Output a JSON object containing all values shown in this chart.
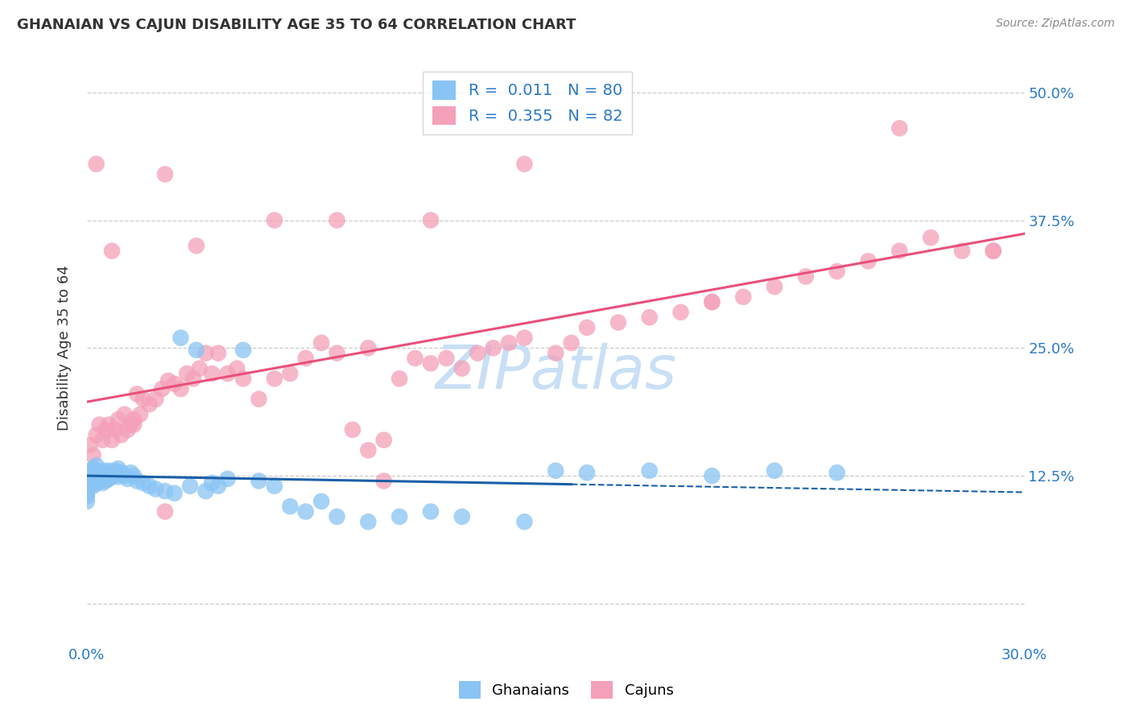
{
  "title": "GHANAIAN VS CAJUN DISABILITY AGE 35 TO 64 CORRELATION CHART",
  "source": "Source: ZipAtlas.com",
  "ylabel": "Disability Age 35 to 64",
  "y_tick_labels": [
    "",
    "12.5%",
    "25.0%",
    "37.5%",
    "50.0%"
  ],
  "y_ticks": [
    0.0,
    0.125,
    0.25,
    0.375,
    0.5
  ],
  "x_ticks": [
    0.0,
    0.05,
    0.1,
    0.15,
    0.2,
    0.25,
    0.3
  ],
  "x_lim": [
    0.0,
    0.3
  ],
  "y_lim": [
    -0.04,
    0.54
  ],
  "r_ghanaian": 0.011,
  "n_ghanaian": 80,
  "r_cajun": 0.355,
  "n_cajun": 82,
  "color_ghanaian": "#89c4f4",
  "color_cajun": "#f4a0b8",
  "line_color_ghanaian": "#1a5fa8",
  "line_color_cajun": "#e8507a",
  "watermark_color": "#c8dff5",
  "background_color": "#ffffff",
  "title_color": "#333333",
  "source_color": "#888888",
  "axis_label_color": "#333333",
  "tick_label_color": "#2979c8",
  "grid_color": "#cccccc",
  "ghanaian_x": [
    0.0,
    0.0,
    0.0,
    0.0,
    0.0,
    0.0,
    0.0,
    0.0,
    0.001,
    0.001,
    0.001,
    0.001,
    0.001,
    0.002,
    0.002,
    0.002,
    0.002,
    0.002,
    0.002,
    0.003,
    0.003,
    0.003,
    0.003,
    0.003,
    0.004,
    0.004,
    0.004,
    0.005,
    0.005,
    0.005,
    0.005,
    0.006,
    0.006,
    0.006,
    0.007,
    0.007,
    0.007,
    0.008,
    0.008,
    0.009,
    0.009,
    0.01,
    0.01,
    0.01,
    0.011,
    0.012,
    0.013,
    0.014,
    0.015,
    0.016,
    0.018,
    0.02,
    0.022,
    0.025,
    0.028,
    0.03,
    0.033,
    0.035,
    0.038,
    0.04,
    0.042,
    0.045,
    0.05,
    0.055,
    0.06,
    0.065,
    0.07,
    0.075,
    0.08,
    0.09,
    0.1,
    0.11,
    0.12,
    0.14,
    0.15,
    0.16,
    0.18,
    0.2,
    0.22,
    0.24
  ],
  "ghanaian_y": [
    0.125,
    0.122,
    0.118,
    0.115,
    0.112,
    0.108,
    0.105,
    0.1,
    0.13,
    0.128,
    0.125,
    0.122,
    0.118,
    0.132,
    0.128,
    0.125,
    0.122,
    0.118,
    0.115,
    0.135,
    0.13,
    0.126,
    0.122,
    0.118,
    0.128,
    0.124,
    0.12,
    0.13,
    0.125,
    0.122,
    0.118,
    0.128,
    0.124,
    0.12,
    0.13,
    0.126,
    0.122,
    0.128,
    0.124,
    0.13,
    0.126,
    0.132,
    0.128,
    0.124,
    0.128,
    0.125,
    0.122,
    0.128,
    0.125,
    0.12,
    0.118,
    0.115,
    0.112,
    0.11,
    0.108,
    0.26,
    0.115,
    0.248,
    0.11,
    0.118,
    0.115,
    0.122,
    0.248,
    0.12,
    0.115,
    0.095,
    0.09,
    0.1,
    0.085,
    0.08,
    0.085,
    0.09,
    0.085,
    0.08,
    0.13,
    0.128,
    0.13,
    0.125,
    0.13,
    0.128
  ],
  "cajun_x": [
    0.001,
    0.002,
    0.003,
    0.004,
    0.005,
    0.006,
    0.007,
    0.008,
    0.009,
    0.01,
    0.011,
    0.012,
    0.013,
    0.014,
    0.015,
    0.016,
    0.017,
    0.018,
    0.02,
    0.022,
    0.024,
    0.026,
    0.028,
    0.03,
    0.032,
    0.034,
    0.036,
    0.038,
    0.04,
    0.042,
    0.045,
    0.048,
    0.05,
    0.055,
    0.06,
    0.065,
    0.07,
    0.075,
    0.08,
    0.085,
    0.09,
    0.095,
    0.1,
    0.105,
    0.11,
    0.115,
    0.12,
    0.125,
    0.13,
    0.14,
    0.15,
    0.155,
    0.16,
    0.17,
    0.18,
    0.19,
    0.2,
    0.21,
    0.22,
    0.23,
    0.24,
    0.25,
    0.26,
    0.27,
    0.28,
    0.29,
    0.003,
    0.008,
    0.015,
    0.025,
    0.035,
    0.06,
    0.08,
    0.095,
    0.11,
    0.135,
    0.025,
    0.09,
    0.14,
    0.2,
    0.26,
    0.29
  ],
  "cajun_y": [
    0.155,
    0.145,
    0.165,
    0.175,
    0.16,
    0.17,
    0.175,
    0.16,
    0.17,
    0.18,
    0.165,
    0.185,
    0.17,
    0.175,
    0.18,
    0.205,
    0.185,
    0.2,
    0.195,
    0.2,
    0.21,
    0.218,
    0.215,
    0.21,
    0.225,
    0.22,
    0.23,
    0.245,
    0.225,
    0.245,
    0.225,
    0.23,
    0.22,
    0.2,
    0.22,
    0.225,
    0.24,
    0.255,
    0.245,
    0.17,
    0.15,
    0.16,
    0.22,
    0.24,
    0.235,
    0.24,
    0.23,
    0.245,
    0.25,
    0.26,
    0.245,
    0.255,
    0.27,
    0.275,
    0.28,
    0.285,
    0.295,
    0.3,
    0.31,
    0.32,
    0.325,
    0.335,
    0.345,
    0.358,
    0.345,
    0.345,
    0.43,
    0.345,
    0.175,
    0.42,
    0.35,
    0.375,
    0.375,
    0.12,
    0.375,
    0.255,
    0.09,
    0.25,
    0.43,
    0.295,
    0.465,
    0.345
  ]
}
